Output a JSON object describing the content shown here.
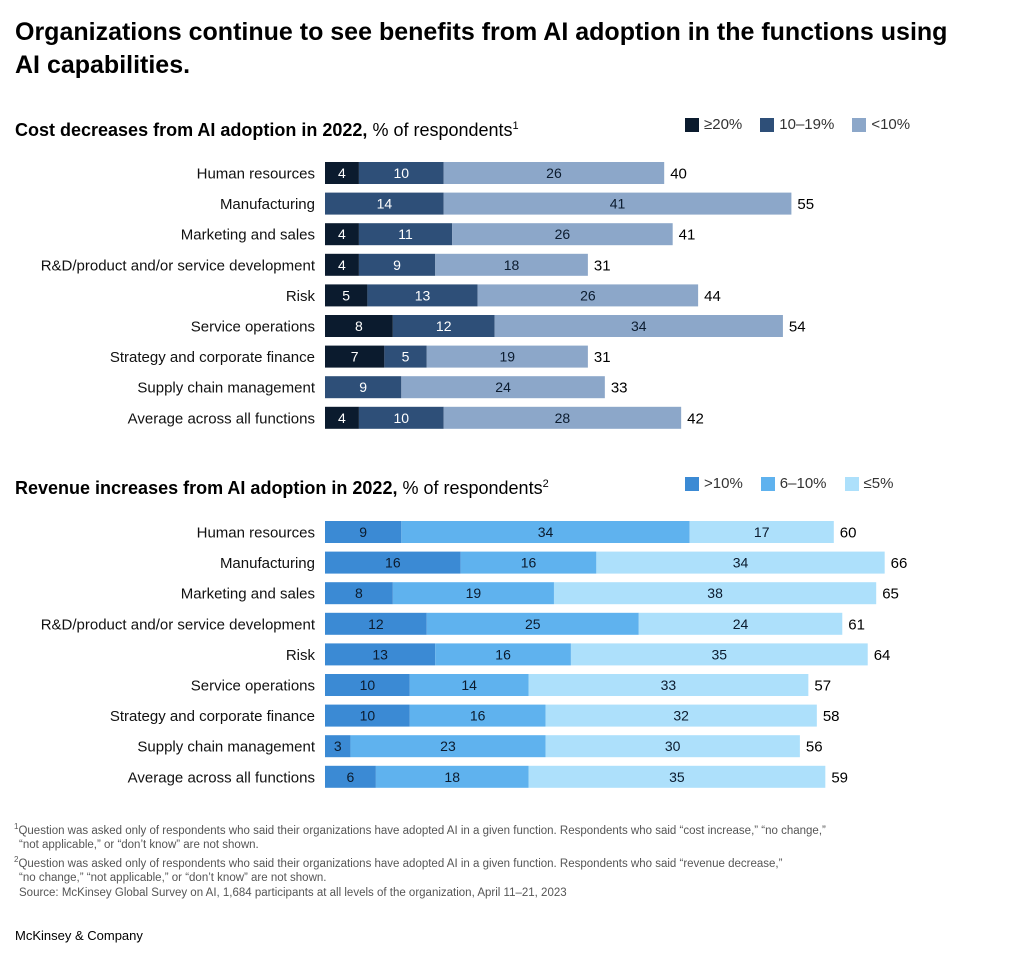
{
  "title": "Organizations continue to see benefits from AI adoption in the functions using AI capabilities.",
  "chart_data": [
    {
      "type": "bar",
      "orientation": "horizontal",
      "stacked": true,
      "title": "Cost decreases from AI adoption in 2022,",
      "subtitle": "% of respondents",
      "footnote_ref": "1",
      "categories": [
        "Human resources",
        "Manufacturing",
        "Marketing and sales",
        "R&D/product and/or service development",
        "Risk",
        "Service operations",
        "Strategy and corporate finance",
        "Supply chain management",
        "Average across all functions"
      ],
      "series": [
        {
          "name": "≥20%",
          "color": "#0b1b2e",
          "label_color": "#ffffff",
          "values": [
            4,
            null,
            4,
            4,
            5,
            8,
            7,
            null,
            4
          ]
        },
        {
          "name": "10–19%",
          "color": "#2e4f78",
          "label_color": "#ffffff",
          "values": [
            10,
            14,
            11,
            9,
            13,
            12,
            5,
            9,
            10
          ]
        },
        {
          "name": "<10%",
          "color": "#8ca7c9",
          "label_color": "#0b1b2e",
          "values": [
            26,
            41,
            26,
            18,
            26,
            34,
            19,
            24,
            28
          ]
        }
      ],
      "totals": [
        40,
        55,
        41,
        31,
        44,
        54,
        31,
        33,
        42
      ]
    },
    {
      "type": "bar",
      "orientation": "horizontal",
      "stacked": true,
      "title": "Revenue increases from AI adoption in 2022,",
      "subtitle": "% of respondents",
      "footnote_ref": "2",
      "categories": [
        "Human resources",
        "Manufacturing",
        "Marketing and sales",
        "R&D/product and/or service development",
        "Risk",
        "Service operations",
        "Strategy and corporate finance",
        "Supply chain management",
        "Average across all functions"
      ],
      "series": [
        {
          "name": ">10%",
          "color": "#3b8ad4",
          "label_color": "#0b1b2e",
          "values": [
            9,
            16,
            8,
            12,
            13,
            10,
            10,
            3,
            6
          ]
        },
        {
          "name": "6–10%",
          "color": "#5fb2ee",
          "label_color": "#0b1b2e",
          "values": [
            34,
            16,
            19,
            25,
            16,
            14,
            16,
            23,
            18
          ]
        },
        {
          "name": "≤5%",
          "color": "#ade0fb",
          "label_color": "#0b1b2e",
          "values": [
            17,
            34,
            38,
            24,
            35,
            33,
            32,
            30,
            35
          ]
        }
      ],
      "totals": [
        60,
        66,
        65,
        61,
        64,
        57,
        58,
        56,
        59
      ]
    }
  ],
  "footnotes": {
    "note1_mark": "1",
    "note1_line1": "Question was asked only of respondents who said their organizations have adopted AI in a given function. Respondents who said “cost increase,” “no change,”",
    "note1_line2": "“not applicable,” or “don’t know” are not shown.",
    "note2_mark": "2",
    "note2_line1": "Question was asked only of respondents who said their organizations have adopted AI in a given function. Respondents who said “revenue decrease,”",
    "note2_line2": "“no change,” “not applicable,” or “don’t know” are not shown.",
    "source": "Source: McKinsey Global Survey on AI, 1,684 participants at all levels of the organization, April 11–21, 2023"
  },
  "brand": "McKinsey & Company"
}
